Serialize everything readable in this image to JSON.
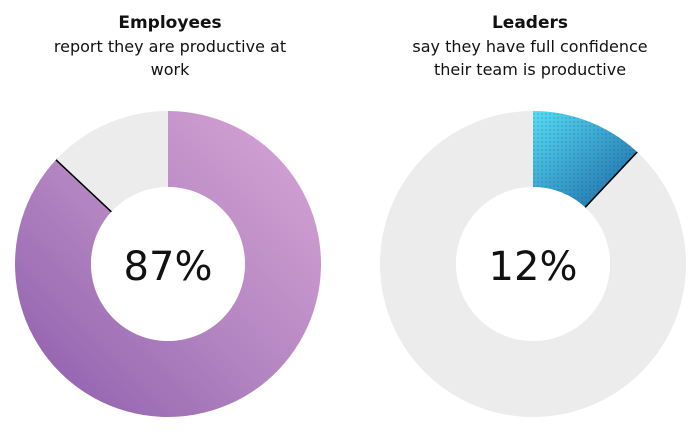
{
  "chart_data": [
    {
      "type": "pie",
      "title": "Employees",
      "subtitle": "report they are productive at work",
      "center_label": "87%",
      "values": [
        87,
        13
      ],
      "colors": [
        "#c99ad0",
        "#8e5fae",
        "#ececec"
      ],
      "highlight_index": 0
    },
    {
      "type": "pie",
      "title": "Leaders",
      "subtitle": "say they have full confidence their team is productive",
      "center_label": "12%",
      "values": [
        12,
        88
      ],
      "colors": [
        "#4fd6f0",
        "#1a6aa8",
        "#ececec"
      ],
      "highlight_index": 0
    }
  ]
}
